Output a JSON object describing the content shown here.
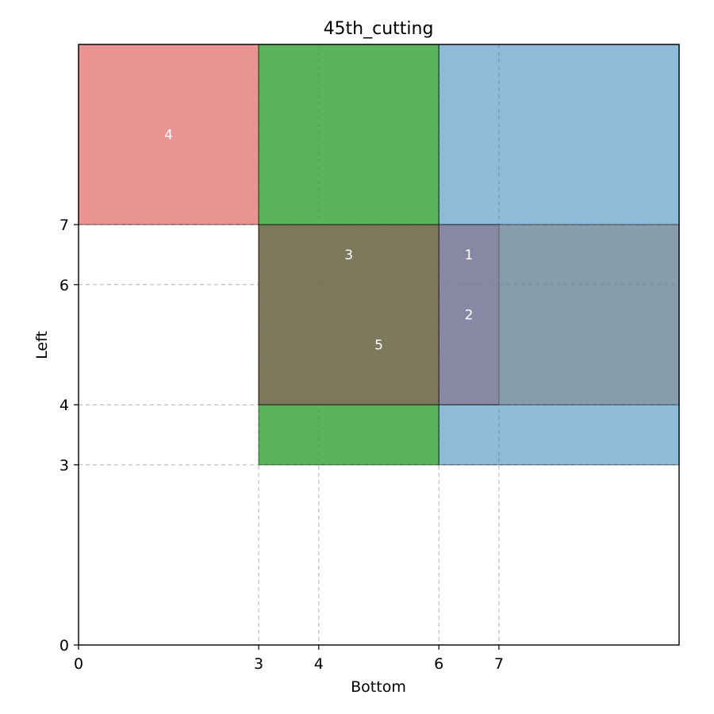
{
  "chart_data": {
    "type": "rectangles",
    "title": "45th_cutting",
    "xlabel": "Bottom",
    "ylabel": "Left",
    "xlim": [
      0,
      10
    ],
    "ylim": [
      0,
      10
    ],
    "xticks": [
      0,
      3,
      4,
      6,
      7
    ],
    "yticks": [
      0,
      3,
      4,
      6,
      7
    ],
    "grid": true,
    "rectangles": [
      {
        "label": "4",
        "x0": 0,
        "x1": 3,
        "y0": 7,
        "y1": 10,
        "color": "#d62728"
      },
      {
        "label": "",
        "x0": 3,
        "x1": 6,
        "y0": 3,
        "y1": 10,
        "color": "#17becf",
        "fill_color": "#2ca02c"
      },
      {
        "label": "",
        "x0": 6,
        "x1": 10,
        "y0": 3,
        "y1": 10,
        "color": "#1f77b4"
      },
      {
        "label": "1",
        "x0": 6,
        "x1": 7,
        "y0": 4,
        "y1": 7,
        "color": "#9467bd"
      },
      {
        "label": "2",
        "x0": 3,
        "x1": 10,
        "y0": 4,
        "y1": 7,
        "color": "#7f7f7f"
      },
      {
        "label": "3",
        "x0": 3,
        "x1": 6,
        "y0": 4,
        "y1": 7,
        "color": "#8c564b"
      }
    ],
    "annotations": [
      {
        "text": "4",
        "x": 1.5,
        "y": 8.5
      },
      {
        "text": "3",
        "x": 4.5,
        "y": 6.5
      },
      {
        "text": "1",
        "x": 6.5,
        "y": 6.5
      },
      {
        "text": "2",
        "x": 6.5,
        "y": 5.5
      },
      {
        "text": "5",
        "x": 5.0,
        "y": 5.0
      }
    ]
  }
}
